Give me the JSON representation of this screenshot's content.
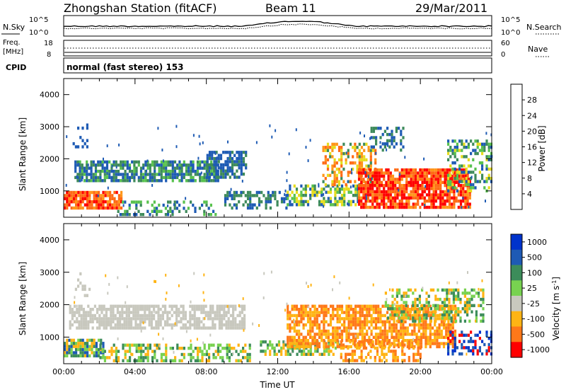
{
  "header": {
    "title": "Zhongshan Station (fitACF)",
    "beam": "Beam 11",
    "date": "29/Mar/2011"
  },
  "nsky_panel": {
    "left_label": "N.Sky",
    "left_ticks": [
      "10^5",
      "10^0"
    ],
    "right_ticks": [
      "10^5",
      "10^0"
    ],
    "right_label": "N.Search"
  },
  "freq_panel": {
    "left_label_top": "Freq.",
    "left_label_unit": "[MHz]",
    "left_ticks": [
      "18",
      "8"
    ],
    "right_ticks": [
      "60",
      "0"
    ],
    "right_label": "Nave"
  },
  "cpid": {
    "label": "CPID",
    "value": "normal (fast stereo) 153"
  },
  "chart_data": [
    {
      "type": "heatmap",
      "title": "Power",
      "ylabel": "Slant Range [km]",
      "xlabel": "",
      "xlim": [
        "00:00",
        "24:00"
      ],
      "ylim": [
        180,
        4500
      ],
      "yticks": [
        "1000",
        "2000",
        "3000",
        "4000"
      ],
      "colorbar": {
        "label": "Power [dB]",
        "ticks": [
          "4",
          "8",
          "12",
          "16",
          "20",
          "24",
          "28"
        ],
        "range": [
          0,
          32
        ],
        "colors": [
          "#0000ff",
          "#1e5bb4",
          "#3d8a5a",
          "#58c24e",
          "#e6dc1e",
          "#ff9619",
          "#ff6a14",
          "#ff0000"
        ]
      },
      "features": [
        {
          "time_range": [
            "00:00",
            "08:30"
          ],
          "range_km": [
            1400,
            2000
          ],
          "level": "low (4-12 dB)"
        },
        {
          "time_range": [
            "08:00",
            "10:00"
          ],
          "range_km": [
            1500,
            2200
          ],
          "level": "low (4-12 dB)"
        },
        {
          "time_range": [
            "00:00",
            "03:00"
          ],
          "range_km": [
            400,
            900
          ],
          "level": "high (20-28 dB)"
        },
        {
          "time_range": [
            "16:30",
            "23:00"
          ],
          "range_km": [
            500,
            1500
          ],
          "level": "high (20-28 dB)"
        }
      ]
    },
    {
      "type": "heatmap",
      "title": "Velocity",
      "ylabel": "Slant Range [km]",
      "xlabel": "Time UT",
      "xlim": [
        "00:00",
        "24:00"
      ],
      "ylim": [
        180,
        4500
      ],
      "yticks": [
        "1000",
        "2000",
        "3000",
        "4000"
      ],
      "xticks": [
        "00:00",
        "04:00",
        "08:00",
        "12:00",
        "16:00",
        "20:00",
        "00:00"
      ],
      "colorbar": {
        "label": "Velocity [m s",
        "label_sup": "-1",
        "label_end": "]",
        "ticks": [
          "1000",
          "500",
          "100",
          "25",
          "-25",
          "-100",
          "-500",
          "-1000"
        ],
        "colors": [
          "#0033cc",
          "#1e5ab4",
          "#3c8c5a",
          "#78d250",
          "#c8c8be",
          "#ffb414",
          "#ff7819",
          "#ff0000"
        ]
      },
      "features": [
        {
          "time_range": [
            "00:00",
            "10:00"
          ],
          "range_km": [
            1300,
            2000
          ],
          "velocity": "ground scatter (grey)"
        },
        {
          "time_range": [
            "13:00",
            "22:00"
          ],
          "range_km": [
            500,
            2000
          ],
          "velocity": "-100 to -500 m/s (orange)"
        },
        {
          "time_range": [
            "00:00",
            "02:00"
          ],
          "range_km": [
            400,
            900
          ],
          "velocity": "100 to 500 m/s (green)"
        }
      ]
    }
  ]
}
